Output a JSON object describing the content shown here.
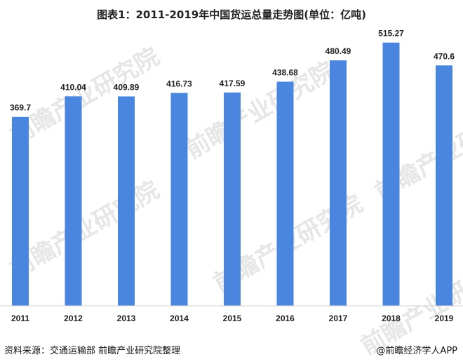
{
  "chart_data": {
    "type": "bar",
    "title": "图表1：2011-2019年中国货运总量走势图(单位：亿吨)",
    "categories": [
      "2011",
      "2012",
      "2013",
      "2014",
      "2015",
      "2016",
      "2017",
      "2018",
      "2019"
    ],
    "values": [
      369.7,
      410.04,
      409.89,
      416.73,
      417.59,
      438.68,
      480.49,
      515.27,
      470.6
    ],
    "value_labels": [
      "369.7",
      "410.04",
      "409.89",
      "416.73",
      "417.59",
      "438.68",
      "480.49",
      "515.27",
      "470.6"
    ],
    "ylim": [
      0,
      530
    ],
    "grid": false,
    "bar_color": "#4a86e0"
  },
  "footer": {
    "source": "资料来源：交通运输部 前瞻产业研究院整理",
    "brand": "@前瞻经济学人APP"
  },
  "watermark": {
    "text": "前瞻产业研究院"
  }
}
